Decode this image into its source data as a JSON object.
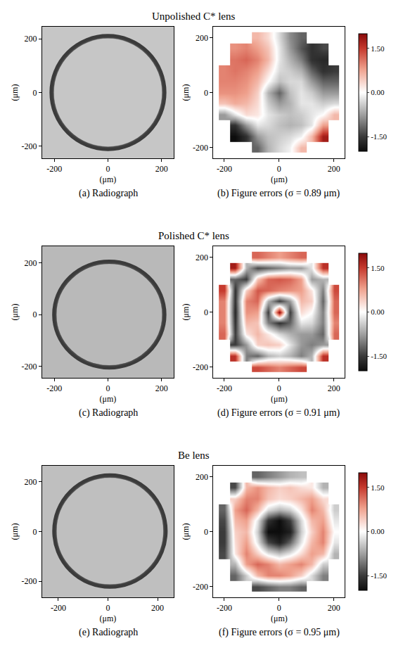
{
  "chart_data": [
    {
      "title": "Unpolished C* lens",
      "panels": [
        {
          "type": "image",
          "caption": "(a) Radiograph",
          "xlabel": "(μm)",
          "ylabel": "(μm)",
          "xlim": [
            -245,
            245
          ],
          "ylim": [
            -245,
            245
          ],
          "xticks": [
            -200,
            0,
            200
          ],
          "yticks": [
            -200,
            0,
            200
          ],
          "aperture": {
            "center": [
              0,
              0
            ],
            "radius": 210
          }
        },
        {
          "type": "heatmap",
          "caption": "(b) Figure errors (σ = 0.89 μm)",
          "xlabel": "(μm)",
          "ylabel": "(μm)",
          "xlim": [
            -240,
            240
          ],
          "ylim": [
            -240,
            240
          ],
          "xticks": [
            -200,
            0,
            200
          ],
          "yticks": [
            -200,
            0,
            200
          ],
          "x": [
            -200,
            -160,
            -120,
            -80,
            -40,
            0,
            40,
            80,
            120,
            160,
            200
          ],
          "y": [
            200,
            160,
            120,
            80,
            40,
            0,
            -40,
            -80,
            -120,
            -160,
            -200
          ],
          "z": [
            [
              null,
              null,
              null,
              0.6,
              0.3,
              -0.3,
              -0.9,
              -1.2,
              null,
              null,
              null
            ],
            [
              null,
              0.9,
              1.0,
              0.8,
              0.5,
              -0.2,
              -0.8,
              -1.3,
              -1.6,
              -1.4,
              null
            ],
            [
              null,
              1.1,
              1.2,
              1.0,
              0.6,
              -0.2,
              -0.6,
              -1.0,
              -1.6,
              -1.7,
              null
            ],
            [
              1.0,
              1.1,
              1.0,
              0.8,
              0.3,
              -0.3,
              -0.4,
              -0.6,
              -1.2,
              -1.6,
              -1.5
            ],
            [
              1.0,
              1.0,
              0.9,
              0.6,
              0.0,
              -0.5,
              -0.3,
              -0.3,
              -0.8,
              -1.2,
              -1.2
            ],
            [
              0.9,
              0.9,
              0.8,
              0.4,
              -0.6,
              -1.2,
              -0.5,
              -0.2,
              -0.4,
              -0.8,
              -0.8
            ],
            [
              0.5,
              0.7,
              0.6,
              0.3,
              -0.4,
              -0.8,
              -0.6,
              -0.2,
              -0.2,
              -0.4,
              -0.3
            ],
            [
              -0.8,
              -0.2,
              0.3,
              0.2,
              -0.2,
              -0.4,
              -0.5,
              -0.4,
              -0.2,
              0.0,
              0.6
            ],
            [
              null,
              -1.6,
              -0.8,
              -0.2,
              -0.3,
              -0.5,
              -0.6,
              -0.5,
              -0.2,
              0.8,
              null
            ],
            [
              null,
              -2.0,
              -1.6,
              -0.8,
              -0.5,
              -0.4,
              -0.3,
              -0.1,
              0.6,
              1.8,
              null
            ],
            [
              null,
              null,
              null,
              -1.2,
              -0.6,
              -0.3,
              -0.1,
              0.6,
              null,
              null,
              null
            ]
          ],
          "colorbar": {
            "range": [
              -2,
              2
            ],
            "ticks": [
              {
                "value": 1.5,
                "label": "1.50"
              },
              {
                "value": 0,
                "label": "0.00"
              },
              {
                "value": -1.5,
                "label": "-1.50"
              }
            ]
          }
        }
      ]
    },
    {
      "title": "Polished C* lens",
      "panels": [
        {
          "type": "image",
          "caption": "(c) Radiograph",
          "xlabel": "(μm)",
          "ylabel": "(μm)",
          "xlim": [
            -245,
            245
          ],
          "ylim": [
            -245,
            265
          ],
          "xticks": [
            -200,
            0,
            200
          ],
          "yticks": [
            -200,
            0,
            200
          ],
          "aperture": {
            "center": [
              5,
              0
            ],
            "radius": 205
          }
        },
        {
          "type": "heatmap",
          "caption": "(d) Figure errors (σ = 0.91 μm)",
          "xlabel": "(μm)",
          "ylabel": "(μm)",
          "xlim": [
            -240,
            240
          ],
          "ylim": [
            -240,
            240
          ],
          "xticks": [
            -200,
            0,
            200
          ],
          "yticks": [
            -200,
            0,
            200
          ],
          "x": [
            -200,
            -160,
            -120,
            -80,
            -40,
            0,
            40,
            80,
            120,
            160,
            200
          ],
          "y": [
            200,
            160,
            120,
            80,
            40,
            0,
            -40,
            -80,
            -120,
            -160,
            -200
          ],
          "z": [
            [
              null,
              null,
              null,
              1.2,
              1.0,
              0.8,
              1.0,
              1.2,
              null,
              null,
              null
            ],
            [
              null,
              1.8,
              -0.6,
              -1.4,
              -1.2,
              -1.0,
              -0.8,
              -0.8,
              -0.2,
              1.6,
              null
            ],
            [
              null,
              -1.2,
              -1.5,
              0.5,
              1.2,
              1.3,
              1.2,
              0.8,
              -0.8,
              -0.6,
              null
            ],
            [
              1.5,
              -1.6,
              0.4,
              1.3,
              1.2,
              1.0,
              0.9,
              0.8,
              0.2,
              -1.0,
              1.4
            ],
            [
              1.0,
              -1.6,
              1.0,
              1.2,
              -0.6,
              -1.5,
              -0.8,
              0.6,
              0.4,
              -1.2,
              1.2
            ],
            [
              1.0,
              -1.7,
              0.9,
              0.8,
              -1.5,
              2.0,
              -1.5,
              0.3,
              0.0,
              -1.0,
              1.2
            ],
            [
              1.0,
              -1.6,
              0.6,
              0.5,
              -1.0,
              -1.6,
              -1.2,
              -0.2,
              -0.3,
              -1.0,
              1.0
            ],
            [
              1.2,
              -1.5,
              0.2,
              0.6,
              0.2,
              -0.3,
              -0.6,
              -0.8,
              -0.8,
              -1.2,
              1.2
            ],
            [
              null,
              -1.5,
              -0.8,
              0.4,
              0.5,
              0.4,
              -0.2,
              -0.8,
              -1.0,
              -0.8,
              null
            ],
            [
              null,
              1.6,
              -1.0,
              -1.2,
              -0.6,
              -0.4,
              -0.6,
              -1.0,
              -0.6,
              1.6,
              null
            ],
            [
              null,
              null,
              null,
              1.4,
              1.2,
              1.0,
              1.2,
              1.4,
              null,
              null,
              null
            ]
          ],
          "colorbar": {
            "range": [
              -2,
              2
            ],
            "ticks": [
              {
                "value": 1.5,
                "label": "1.50"
              },
              {
                "value": 0,
                "label": "0.00"
              },
              {
                "value": -1.5,
                "label": "-1.50"
              }
            ]
          }
        }
      ]
    },
    {
      "title": "Be lens",
      "panels": [
        {
          "type": "image",
          "caption": "(e) Radiograph",
          "xlabel": "(μm)",
          "ylabel": "(μm)",
          "xlim": [
            -265,
            265
          ],
          "ylim": [
            -265,
            265
          ],
          "xticks": [
            -200,
            0,
            200
          ],
          "yticks": [
            -200,
            0,
            200
          ],
          "aperture": {
            "center": [
              8,
              2
            ],
            "radius": 224
          }
        },
        {
          "type": "heatmap",
          "caption": "(f) Figure errors (σ = 0.95 μm)",
          "xlabel": "(μm)",
          "ylabel": "(μm)",
          "xlim": [
            -240,
            240
          ],
          "ylim": [
            -240,
            240
          ],
          "xticks": [
            -200,
            0,
            200
          ],
          "yticks": [
            -200,
            0,
            200
          ],
          "x": [
            -200,
            -160,
            -120,
            -80,
            -40,
            0,
            40,
            80,
            120,
            160,
            200
          ],
          "y": [
            200,
            160,
            120,
            80,
            40,
            0,
            -40,
            -80,
            -120,
            -160,
            -200
          ],
          "z": [
            [
              null,
              null,
              null,
              -1.2,
              -1.0,
              -0.8,
              -0.6,
              -0.5,
              null,
              null,
              null
            ],
            [
              null,
              -1.4,
              0.6,
              0.9,
              0.6,
              0.4,
              0.5,
              0.3,
              0.2,
              -0.6,
              null
            ],
            [
              null,
              0.4,
              1.0,
              1.0,
              0.5,
              0.3,
              0.4,
              0.6,
              0.8,
              0.3,
              null
            ],
            [
              -1.2,
              0.8,
              1.2,
              0.6,
              -0.3,
              -0.6,
              -0.4,
              0.2,
              1.0,
              0.6,
              -0.4
            ],
            [
              -1.4,
              0.6,
              0.8,
              -0.2,
              -1.6,
              -2.0,
              -1.5,
              -0.3,
              0.6,
              0.8,
              -0.2
            ],
            [
              -1.5,
              0.4,
              0.6,
              -0.4,
              -2.0,
              -2.0,
              -1.8,
              -0.4,
              0.4,
              1.0,
              0.0
            ],
            [
              -1.5,
              0.3,
              0.8,
              -0.2,
              -1.4,
              -1.8,
              -1.2,
              -0.2,
              0.6,
              1.0,
              -0.2
            ],
            [
              -1.4,
              0.2,
              1.0,
              0.4,
              -0.2,
              -0.5,
              -0.2,
              0.3,
              0.8,
              0.6,
              -0.6
            ],
            [
              null,
              -0.6,
              0.8,
              1.2,
              1.0,
              0.6,
              0.8,
              1.0,
              0.6,
              -0.4,
              null
            ],
            [
              null,
              -1.2,
              -0.4,
              0.6,
              1.0,
              1.0,
              0.8,
              0.4,
              -0.3,
              -1.0,
              null
            ],
            [
              null,
              null,
              null,
              -1.4,
              -1.2,
              -1.0,
              -1.0,
              -1.2,
              null,
              null,
              null
            ]
          ],
          "colorbar": {
            "range": [
              -2,
              2
            ],
            "ticks": [
              {
                "value": 1.5,
                "label": "1.50"
              },
              {
                "value": 0,
                "label": "0.00"
              },
              {
                "value": -1.5,
                "label": "-1.50"
              }
            ]
          }
        }
      ]
    }
  ]
}
